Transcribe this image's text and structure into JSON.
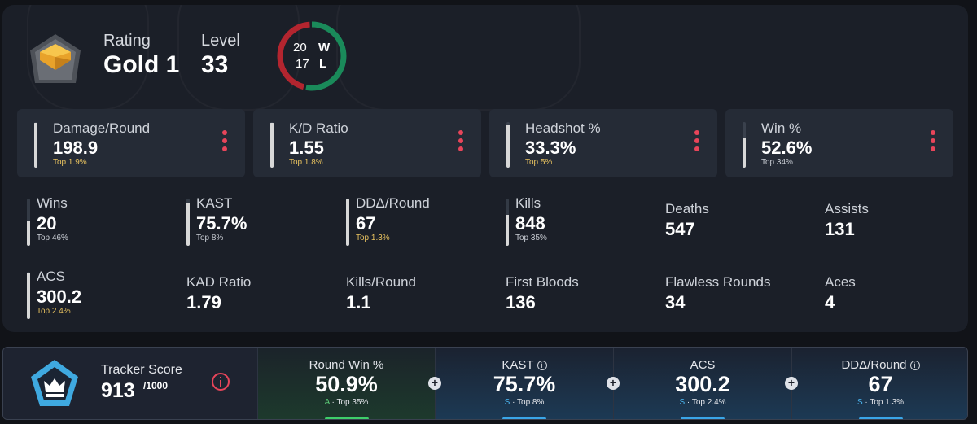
{
  "header": {
    "rating_label": "Rating",
    "rating_value": "Gold 1",
    "level_label": "Level",
    "level_value": "33",
    "wins": "20",
    "wins_letter": "W",
    "losses": "17",
    "losses_letter": "L",
    "win_color": "#1a8a5a",
    "loss_color": "#b3252f"
  },
  "cards": [
    {
      "label": "Damage/Round",
      "value": "198.9",
      "top": "Top 1.9%",
      "top_gold": true,
      "fill": 0.98
    },
    {
      "label": "K/D Ratio",
      "value": "1.55",
      "top": "Top 1.8%",
      "top_gold": true,
      "fill": 0.98
    },
    {
      "label": "Headshot %",
      "value": "33.3%",
      "top": "Top 5%",
      "top_gold": true,
      "fill": 0.95
    },
    {
      "label": "Win %",
      "value": "52.6%",
      "top": "Top 34%",
      "top_gold": false,
      "fill": 0.66
    }
  ],
  "stats_row1": [
    {
      "label": "Wins",
      "value": "20",
      "top": "Top 46%",
      "top_gold": false,
      "fill": 0.54
    },
    {
      "label": "KAST",
      "value": "75.7%",
      "top": "Top 8%",
      "top_gold": false,
      "fill": 0.92
    },
    {
      "label": "DDΔ/Round",
      "value": "67",
      "top": "Top 1.3%",
      "top_gold": true,
      "fill": 0.99
    },
    {
      "label": "Kills",
      "value": "848",
      "top": "Top 35%",
      "top_gold": false,
      "fill": 0.65
    },
    {
      "label": "Deaths",
      "value": "547"
    },
    {
      "label": "Assists",
      "value": "131"
    }
  ],
  "stats_row2": [
    {
      "label": "ACS",
      "value": "300.2",
      "top": "Top 2.4%",
      "top_gold": true,
      "fill": 0.98
    },
    {
      "label": "KAD Ratio",
      "value": "1.79"
    },
    {
      "label": "Kills/Round",
      "value": "1.1"
    },
    {
      "label": "First Bloods",
      "value": "136"
    },
    {
      "label": "Flawless Rounds",
      "value": "34"
    },
    {
      "label": "Aces",
      "value": "4"
    }
  ],
  "tracker": {
    "label": "Tracker Score",
    "score": "913",
    "max": "/1000",
    "cells": [
      {
        "label": "Round Win %",
        "value": "50.9%",
        "grade": "A",
        "top": "· Top 35%",
        "theme": "green",
        "pill_color": "#3ecf6a",
        "info": false
      },
      {
        "label": "KAST",
        "value": "75.7%",
        "grade": "S",
        "top": "· Top 8%",
        "theme": "blue",
        "pill_color": "#3aa6e8",
        "info": true
      },
      {
        "label": "ACS",
        "value": "300.2",
        "grade": "S",
        "top": "· Top 2.4%",
        "theme": "blue",
        "pill_color": "#3aa6e8",
        "info": false
      },
      {
        "label": "DDΔ/Round",
        "value": "67",
        "grade": "S",
        "top": "· Top 1.3%",
        "theme": "blue",
        "pill_color": "#3aa6e8",
        "info": true
      }
    ],
    "plus_symbol": "+"
  }
}
